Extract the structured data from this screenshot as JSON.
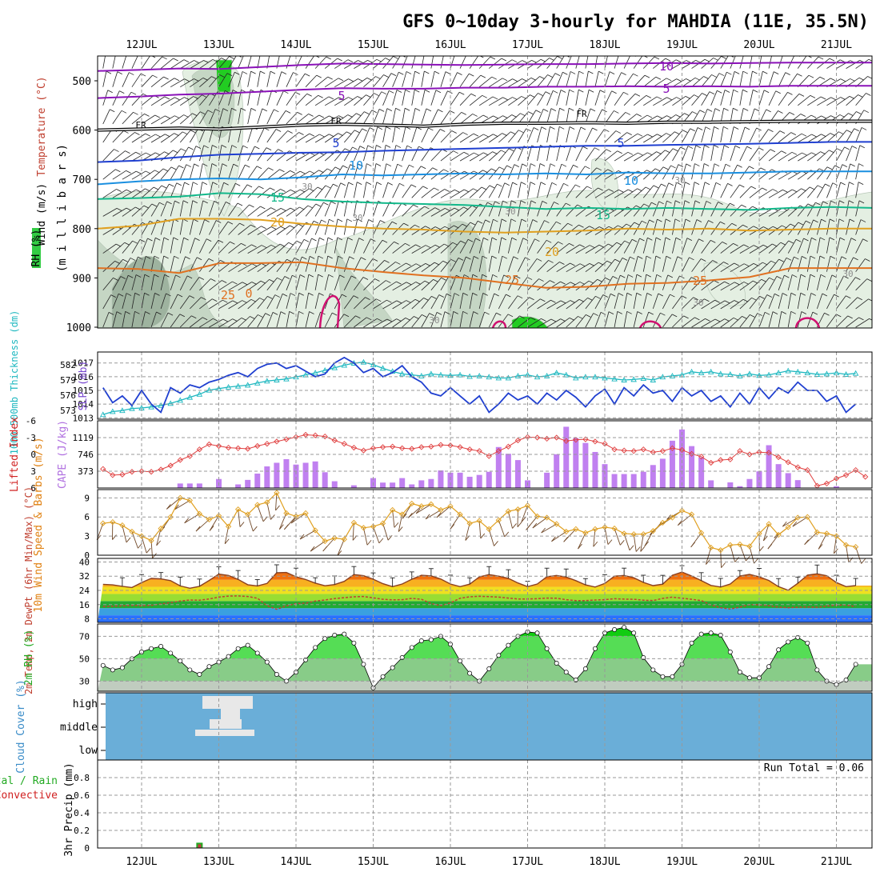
{
  "title": "GFS 0~10day 3-hourly for MAHDIA (11E, 35.5N)",
  "dates": [
    "12JUL",
    "13JUL",
    "14JUL",
    "15JUL",
    "16JUL",
    "17JUL",
    "18JUL",
    "19JUL",
    "20JUL",
    "21JUL"
  ],
  "colors": {
    "purple": "#8a12b8",
    "black": "#000000",
    "blue": "#1f3fd0",
    "lightblue": "#1a8fe0",
    "teal": "#12b88a",
    "orange": "#e0a020",
    "darkorange": "#e07020",
    "magenta": "#d01070",
    "rh_light": "#e4efe2",
    "rh_mid": "#c5d6c4",
    "rh_dark": "#9eb39f",
    "rh_green": "#22cc22",
    "slp": "#1f3fd0",
    "thickness": "#1fb8c0",
    "li": "#e04040",
    "cape": "#c080f0",
    "wind_speed": "#e0a020",
    "barb": "#704828",
    "temp": "#8a4020",
    "dewpt": "#c04030",
    "rh2m": "#22cc22",
    "cloud_bg": "#6aaed8",
    "cloud": "#e8e8e8",
    "precip": "#c04040"
  },
  "chart_data": [
    {
      "panel": "upper_air",
      "type": "contour",
      "ylabel_parts": [
        "Wind (m/s)",
        "Temperature (°C)",
        "RH (%)",
        "(m i l l i b a r s)"
      ],
      "y_ticks": [
        "500",
        "600",
        "700",
        "800",
        "900",
        "1000"
      ],
      "ylim": [
        1025,
        445
      ],
      "contour_labels": {
        "m10": "10",
        "m5": "5",
        "fr": "FR",
        "p5": "5",
        "p10": "10",
        "p15": "15",
        "p20": "20",
        "p25": "25",
        "p0": "0",
        "rh30": "30"
      },
      "isotherms": [
        {
          "name": "-10",
          "color": "purple",
          "y": [
            480,
            478,
            475,
            476,
            472,
            468,
            465,
            466,
            467,
            468,
            467,
            466,
            466,
            465,
            464,
            465,
            464,
            463,
            463,
            463
          ]
        },
        {
          "name": "-5",
          "color": "purple",
          "y": [
            535,
            532,
            528,
            526,
            522,
            518,
            515,
            516,
            516,
            514,
            514,
            512,
            512,
            511,
            512,
            511,
            512,
            510,
            510,
            510
          ]
        },
        {
          "name": "FR",
          "color": "black",
          "y": [
            600,
            598,
            596,
            598,
            594,
            590,
            588,
            590,
            592,
            588,
            586,
            586,
            585,
            586,
            584,
            584,
            583,
            582,
            582,
            582
          ]
        },
        {
          "name": "5",
          "color": "blue",
          "y": [
            665,
            662,
            655,
            650,
            648,
            646,
            645,
            642,
            640,
            638,
            636,
            634,
            632,
            632,
            630,
            629,
            628,
            626,
            624,
            624
          ]
        },
        {
          "name": "10",
          "color": "lightblue",
          "y": [
            710,
            704,
            700,
            698,
            700,
            696,
            690,
            692,
            690,
            688,
            690,
            688,
            690,
            686,
            688,
            688,
            686,
            684,
            684,
            684
          ]
        },
        {
          "name": "15",
          "color": "teal",
          "y": [
            740,
            738,
            735,
            728,
            730,
            740,
            745,
            748,
            750,
            752,
            756,
            760,
            758,
            760,
            758,
            760,
            762,
            758,
            756,
            758
          ]
        },
        {
          "name": "20",
          "color": "orange",
          "y": [
            800,
            794,
            780,
            780,
            782,
            790,
            796,
            800,
            802,
            806,
            808,
            806,
            804,
            800,
            802,
            800,
            804,
            802,
            800,
            800
          ]
        },
        {
          "name": "25",
          "color": "darkorange",
          "y": [
            880,
            882,
            890,
            870,
            870,
            868,
            880,
            888,
            895,
            900,
            910,
            920,
            918,
            912,
            910,
            905,
            898,
            880,
            880,
            880
          ]
        }
      ]
    },
    {
      "panel": "slp_thickness",
      "type": "line",
      "y_ticks_slp": [
        "1017",
        "1016",
        "1015",
        "1014",
        "1013"
      ],
      "y_ticks_thickness": [
        "582",
        "579",
        "576",
        "573"
      ],
      "ylabel_slp": "SLP (mb)",
      "ylabel_thickness": "1000-500mb Thickness (dm)",
      "slp_ylim": [
        1012.9,
        1017.8
      ],
      "thickness_ylim": [
        571.3,
        584.5
      ],
      "series": [
        {
          "name": "SLP",
          "unit": "mb",
          "values": [
            1015.2,
            1014.1,
            1014.6,
            1013.9,
            1015.0,
            1014.0,
            1013.4,
            1015.2,
            1014.8,
            1015.4,
            1015.2,
            1015.6,
            1015.8,
            1016.1,
            1016.3,
            1016.0,
            1016.6,
            1016.9,
            1017.0,
            1016.6,
            1016.8,
            1016.4,
            1016.0,
            1016.2,
            1017.0,
            1017.4,
            1017.0,
            1016.3,
            1016.6,
            1016.0,
            1016.3,
            1016.8,
            1016.0,
            1015.6,
            1014.8,
            1014.6,
            1015.2,
            1014.6,
            1014.0,
            1014.6,
            1013.4,
            1014.0,
            1014.8,
            1014.3,
            1014.6,
            1014.0,
            1014.8,
            1014.3,
            1015.0,
            1014.5,
            1013.8,
            1014.6,
            1015.1,
            1014.0,
            1015.2,
            1014.6,
            1015.4,
            1014.8,
            1015.0,
            1014.2,
            1015.2,
            1014.6,
            1015.0,
            1014.2,
            1014.6,
            1013.8,
            1014.8,
            1014.0,
            1015.2,
            1014.4,
            1015.2,
            1014.8,
            1015.6,
            1015.0,
            1015.0,
            1014.2,
            1014.6,
            1013.4,
            1014.0
          ]
        },
        {
          "name": "Thickness",
          "unit": "dm",
          "values": [
            572.2,
            572.8,
            573.0,
            573.4,
            573.5,
            573.7,
            574.0,
            574.4,
            575.0,
            575.6,
            576.2,
            577.0,
            577.3,
            577.6,
            577.8,
            578.0,
            578.4,
            578.8,
            579.0,
            579.2,
            579.6,
            580.0,
            580.4,
            580.9,
            581.4,
            581.9,
            582.3,
            582.5,
            582.0,
            581.3,
            580.7,
            580.2,
            580.0,
            579.8,
            580.2,
            580.0,
            579.9,
            580.0,
            579.7,
            579.8,
            579.6,
            579.4,
            579.4,
            579.8,
            580.0,
            579.6,
            579.8,
            580.4,
            580.0,
            579.4,
            579.6,
            579.6,
            579.4,
            579.2,
            579.0,
            579.1,
            579.3,
            579.0,
            579.6,
            579.8,
            580.0,
            580.6,
            580.4,
            580.6,
            580.2,
            580.1,
            579.8,
            580.2,
            579.9,
            580.0,
            580.4,
            580.8,
            580.6,
            580.4,
            580.1,
            580.2,
            580.4,
            580.1,
            580.3
          ]
        }
      ]
    },
    {
      "panel": "li_cape",
      "type": "bar+line",
      "li_ticks": [
        "-6",
        "-3",
        "0",
        "3",
        "6"
      ],
      "cape_ticks": [
        "1119",
        "746",
        "373"
      ],
      "ylabel_li": "Lifted Index",
      "ylabel_cape": "CAPE (J/kg)",
      "li_ylim": [
        6,
        -6
      ],
      "cape_ylim": [
        0,
        1492
      ],
      "series": [
        {
          "name": "Lifted Index",
          "values": [
            2.6,
            3.7,
            3.6,
            3.1,
            3.0,
            3.1,
            2.7,
            2.0,
            1.0,
            0.3,
            -0.9,
            -1.8,
            -1.5,
            -1.2,
            -1.1,
            -1.0,
            -1.5,
            -1.9,
            -2.3,
            -2.7,
            -3.1,
            -3.5,
            -3.4,
            -3.2,
            -2.5,
            -1.9,
            -1.2,
            -0.7,
            -1.1,
            -1.3,
            -1.4,
            -1.1,
            -1.0,
            -1.3,
            -1.4,
            -1.7,
            -1.6,
            -1.3,
            -0.9,
            -0.6,
            0.3,
            -0.6,
            -1.4,
            -2.5,
            -3.1,
            -3.0,
            -2.8,
            -3.0,
            -2.4,
            -2.6,
            -2.7,
            -2.3,
            -1.9,
            -0.9,
            -0.7,
            -0.6,
            -0.9,
            -0.4,
            -0.6,
            -1.1,
            -0.8,
            -0.1,
            0.4,
            1.5,
            1.0,
            0.9,
            -0.6,
            0.0,
            -0.4,
            -0.3,
            0.5,
            1.4,
            2.3,
            2.8,
            5.6,
            5.2,
            4.3,
            3.7,
            2.8,
            4.0
          ]
        },
        {
          "name": "CAPE",
          "values": [
            0,
            0,
            0,
            0,
            0,
            0,
            0,
            0,
            100,
            100,
            100,
            0,
            200,
            0,
            80,
            180,
            320,
            480,
            560,
            640,
            520,
            560,
            590,
            350,
            150,
            0,
            60,
            0,
            220,
            120,
            120,
            220,
            80,
            170,
            200,
            390,
            340,
            340,
            250,
            290,
            360,
            910,
            760,
            620,
            170,
            0,
            340,
            750,
            1360,
            1110,
            1000,
            800,
            530,
            310,
            310,
            310,
            360,
            510,
            650,
            1050,
            1300,
            930,
            680,
            170,
            0,
            125,
            40,
            200,
            370,
            950,
            530,
            330,
            175,
            0,
            0,
            0,
            40,
            0,
            0
          ]
        }
      ]
    },
    {
      "panel": "wind10m",
      "type": "line",
      "y_ticks": [
        "9",
        "6",
        "3",
        "0"
      ],
      "ylabel": "10m Wind Speed & Barbs (m/s)",
      "ylim": [
        0,
        10.3
      ],
      "series": [
        {
          "name": "Speed",
          "unit": "m/s",
          "values": [
            5.0,
            5.2,
            4.7,
            3.7,
            3.0,
            2.3,
            4.2,
            6.0,
            9.0,
            8.6,
            6.5,
            5.6,
            6.2,
            4.5,
            7.2,
            6.4,
            7.9,
            8.3,
            9.8,
            6.6,
            6.1,
            6.6,
            3.9,
            2.2,
            2.7,
            2.5,
            5.1,
            4.3,
            4.5,
            5.0,
            7.1,
            6.4,
            8.1,
            7.7,
            8.0,
            7.1,
            7.7,
            6.4,
            5.0,
            5.4,
            4.1,
            5.5,
            6.9,
            7.2,
            7.8,
            6.1,
            5.9,
            4.9,
            3.7,
            4.1,
            3.5,
            4.1,
            4.4,
            4.2,
            3.4,
            3.3,
            3.3,
            3.8,
            5.1,
            5.9,
            7.0,
            6.4,
            3.5,
            1.2,
            0.8,
            1.6,
            1.7,
            1.4,
            3.4,
            4.9,
            3.2,
            4.4,
            5.9,
            6.0,
            3.6,
            3.4,
            3.0,
            1.6,
            1.3
          ]
        }
      ]
    },
    {
      "panel": "temp2m",
      "type": "area",
      "y_ticks": [
        "40",
        "32",
        "24",
        "16",
        "8"
      ],
      "ylabel": "2m Temp, 2m DewPt (6hr Min/Max) (°C)",
      "ylim": [
        6,
        42
      ],
      "series": [
        {
          "name": "2m Temp",
          "unit": "°C",
          "values": [
            27.4,
            27.1,
            26.3,
            25.6,
            28.4,
            30.8,
            30.5,
            29.5,
            26.5,
            25.2,
            26.3,
            29.6,
            33.2,
            32.4,
            30.2,
            27.2,
            26.5,
            27.9,
            33.9,
            34.1,
            31.7,
            30.1,
            28.1,
            26.6,
            27.3,
            29.1,
            32.9,
            32.3,
            30.3,
            27.8,
            26.1,
            27.6,
            30.3,
            32.5,
            32.2,
            30.4,
            27.6,
            26.1,
            27.5,
            31.6,
            32.9,
            32.0,
            30.8,
            28.2,
            26.1,
            27.6,
            31.7,
            32.4,
            31.5,
            29.5,
            27.1,
            25.9,
            27.9,
            32.0,
            32.4,
            31.1,
            28.5,
            26.7,
            27.5,
            32.5,
            34.3,
            32.1,
            29.5,
            26.8,
            25.9,
            27.6,
            32.1,
            33.0,
            31.6,
            29.6,
            26.1,
            24.1,
            28.0,
            32.6,
            33.3,
            32.3,
            28.4,
            26.1,
            26.7
          ]
        },
        {
          "name": "2m DewPt",
          "unit": "°C",
          "values": [
            14.9,
            15.1,
            15.3,
            15.6,
            15.4,
            15.6,
            16.4,
            17.1,
            18.0,
            18.6,
            18.5,
            19.2,
            20.2,
            20.8,
            20.9,
            20.6,
            19.6,
            15.4,
            13.4,
            15.3,
            16.6,
            16.8,
            18.0,
            18.6,
            19.4,
            19.9,
            20.4,
            20.6,
            19.8,
            19.0,
            18.7,
            18.8,
            19.5,
            19.0,
            16.6,
            15.4,
            17.0,
            19.6,
            20.4,
            20.7,
            20.5,
            20.2,
            19.7,
            19.2,
            19.2,
            19.3,
            19.7,
            19.6,
            18.8,
            18.3,
            18.3,
            18.6,
            18.8,
            19.3,
            19.1,
            19.0,
            18.5,
            18.3,
            19.5,
            20.2,
            19.6,
            19.0,
            18.3,
            15.8,
            14.3,
            13.5,
            14.6,
            16.0,
            15.9,
            15.4,
            14.6,
            14.3,
            14.5,
            14.7,
            14.5,
            15.2,
            15.7,
            15.7,
            14.9
          ]
        }
      ]
    },
    {
      "panel": "rh2m",
      "type": "area",
      "y_ticks": [
        "70",
        "50",
        "30"
      ],
      "ylabel": "2m RH (%)",
      "ylim": [
        21,
        81
      ],
      "series": [
        {
          "name": "2m RH",
          "unit": "%",
          "values": [
            44,
            40,
            42,
            50,
            56,
            59,
            61,
            55,
            48,
            40,
            36,
            43,
            47,
            52,
            59,
            62,
            55,
            47,
            36,
            30,
            38,
            49,
            60,
            68,
            71,
            72,
            64,
            45,
            24,
            34,
            42,
            51,
            60,
            66,
            67,
            70,
            63,
            48,
            37,
            30,
            41,
            53,
            62,
            70,
            74,
            73,
            59,
            46,
            38,
            31,
            41,
            59,
            73,
            76,
            78,
            73,
            51,
            40,
            34,
            34,
            45,
            64,
            72,
            73,
            71,
            56,
            38,
            33,
            33,
            43,
            58,
            65,
            69,
            64,
            40,
            30,
            27,
            31,
            45
          ]
        }
      ]
    },
    {
      "panel": "cloud_cover",
      "type": "heatmap",
      "levels": [
        "high",
        "middle",
        "low"
      ],
      "ylabel": "Cloud Cover (%)"
    },
    {
      "panel": "precip",
      "type": "bar",
      "y_ticks": [
        "0.8",
        "0.6",
        "0.4",
        "0.2",
        "0"
      ],
      "ylabel": "3hr Precip (mm)",
      "legend": [
        "Total / Rain",
        "Convective"
      ],
      "run_total": "Run Total = 0.06",
      "ylim": [
        0,
        1
      ],
      "bars": [
        {
          "date": "12JUL",
          "hour": 18,
          "value": 0.06
        }
      ]
    }
  ]
}
